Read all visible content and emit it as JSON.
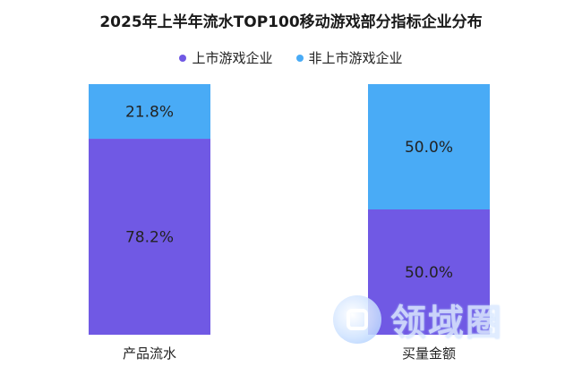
{
  "chart_data": {
    "type": "bar",
    "stacked": true,
    "percent_stacked": true,
    "title": "2025年上半年流水TOP100移动游戏部分指标企业分布",
    "categories": [
      "产品流水",
      "买量金额"
    ],
    "series": [
      {
        "name": "上市游戏企业",
        "values": [
          78.2,
          50.0
        ],
        "color": "#7059e4"
      },
      {
        "name": "非上市游戏企业",
        "values": [
          21.8,
          50.0
        ],
        "color": "#49abf6"
      }
    ],
    "ylim": [
      0,
      100
    ],
    "value_suffix": "%",
    "legend": "top-center",
    "grid": false
  },
  "watermark": {
    "text": "领域圈"
  }
}
